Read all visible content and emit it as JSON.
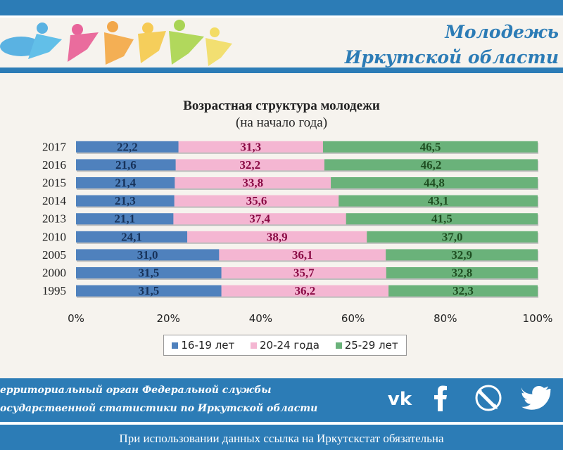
{
  "header": {
    "title_line1": "Молодежь",
    "title_line2": "Иркутской области"
  },
  "colors": {
    "brand": "#2c7cb6",
    "series_16_19": "#4f81bd",
    "series_20_24": "#f4b6d2",
    "series_25_29": "#6ab27a",
    "label_16_19": "#17325a",
    "label_20_24": "#8a0b45",
    "label_25_29": "#1f4f22"
  },
  "chart_data": {
    "type": "bar",
    "orientation": "horizontal-stacked-100",
    "title": "Возрастная структура молодежи",
    "subtitle": "(на начало года)",
    "categories": [
      "2017",
      "2016",
      "2015",
      "2014",
      "2013",
      "2010",
      "2005",
      "2000",
      "1995"
    ],
    "series": [
      {
        "name": "16-19 лет",
        "values": [
          22.2,
          21.6,
          21.4,
          21.3,
          21.1,
          24.1,
          31.0,
          31.5,
          31.5
        ],
        "labels": [
          "22,2",
          "21,6",
          "21,4",
          "21,3",
          "21,1",
          "24,1",
          "31,0",
          "31,5",
          "31,5"
        ]
      },
      {
        "name": "20-24 года",
        "values": [
          31.3,
          32.2,
          33.8,
          35.6,
          37.4,
          38.9,
          36.1,
          35.7,
          36.2
        ],
        "labels": [
          "31,3",
          "32,2",
          "33,8",
          "35,6",
          "37,4",
          "38,9",
          "36,1",
          "35,7",
          "36,2"
        ]
      },
      {
        "name": "25-29 лет",
        "values": [
          46.5,
          46.2,
          44.8,
          43.1,
          41.5,
          37.0,
          32.9,
          32.8,
          32.3
        ],
        "labels": [
          "46,5",
          "46,2",
          "44,8",
          "43,1",
          "41,5",
          "37,0",
          "32,9",
          "32,8",
          "32,3"
        ]
      }
    ],
    "xticks": [
      "0%",
      "20%",
      "40%",
      "60%",
      "80%",
      "100%"
    ],
    "xlim": [
      0,
      100
    ],
    "grid": false,
    "legend_position": "bottom"
  },
  "footer": {
    "org_line1": "ерриториальный орган Федеральной службы",
    "org_line2": "осударственной статистики по Иркутской области",
    "social_icons": [
      "vk-icon",
      "facebook-icon",
      "livejournal-icon",
      "twitter-icon"
    ],
    "notice": "При использовании данных ссылка на Иркутскстат  обязательна"
  }
}
